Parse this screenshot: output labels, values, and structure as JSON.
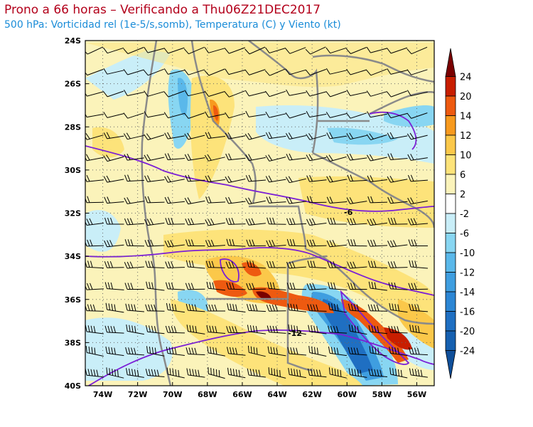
{
  "title": "Prono a 66 horas – Verificando a Thu06Z21DEC2017",
  "subtitle": "500 hPa: Vorticidad rel (1e-5/s,somb), Temperatura (C) y Viento (kt)",
  "map": {
    "lon_range": [
      -75,
      -55
    ],
    "lat_range": [
      -40,
      -24
    ],
    "lat_ticks": [
      "24S",
      "26S",
      "28S",
      "30S",
      "32S",
      "34S",
      "36S",
      "38S",
      "40S"
    ],
    "lon_ticks": [
      "74W",
      "72W",
      "70W",
      "68W",
      "66W",
      "64W",
      "62W",
      "60W",
      "58W",
      "56W"
    ],
    "contour_labels": [
      "-6",
      "-12"
    ]
  },
  "colorbar": {
    "labels": [
      "24",
      "20",
      "14",
      "12",
      "10",
      "6",
      "2",
      "-2",
      "-6",
      "-10",
      "-12",
      "-14",
      "-16",
      "-20",
      "-24"
    ],
    "colors": [
      "#7a0000",
      "#c81e00",
      "#ee5a10",
      "#f79a1e",
      "#fbc84a",
      "#fde37a",
      "#fbf3ba",
      "#ffffff",
      "#c9eef8",
      "#88d6f2",
      "#5ab8ea",
      "#3f9ee0",
      "#2c86d4",
      "#1f6fc2",
      "#1660b0",
      "#0f4f9a"
    ]
  }
}
